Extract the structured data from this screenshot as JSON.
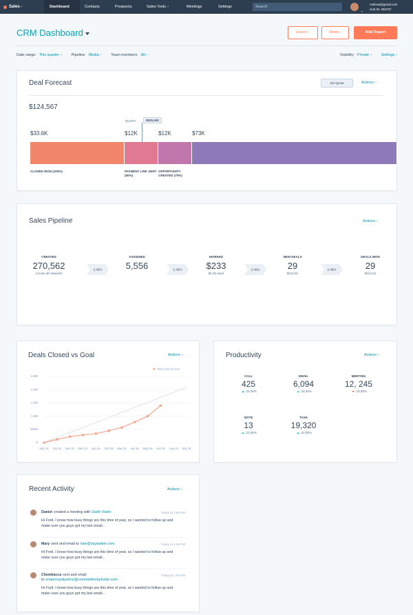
{
  "nav": {
    "brand": "Sales",
    "items": [
      "Dashboard",
      "Contacts",
      "Prospects",
      "Sales Tools",
      "Meetings",
      "Settings"
    ],
    "search": "Search",
    "email": "melissa@gmail.com",
    "hub_id": "Hub ID: 292707"
  },
  "header": {
    "title": "CRM Dashboard",
    "buttons": [
      "Export",
      "Share",
      "Add Report"
    ]
  },
  "filters": {
    "left": [
      {
        "label": "Date range:",
        "value": "This quarter"
      },
      {
        "label": "Pipeline:",
        "value": "Media"
      },
      {
        "label": "Team members:",
        "value": "All"
      }
    ],
    "visibility": {
      "label": "Visibility:",
      "value": "Private"
    },
    "settings": "Settings"
  },
  "deal_forecast": {
    "title": "Deal Forecast",
    "set_quota": "Set Quota",
    "actions": "Actions",
    "total": "$124,567",
    "quota_label": "QUOTA",
    "quota_value": "$200,343",
    "segments": [
      {
        "value": 33600,
        "label": "$33.6K",
        "caption": "CLOSED WON (100%)",
        "color": "#f2866b"
      },
      {
        "value": 12000,
        "label": "$12K",
        "caption": "PAYMENT LINK SENT (60%)",
        "color": "#e07a93"
      },
      {
        "value": 12000,
        "label": "$12K",
        "caption": "OPPORTUNITY CREATED (70%)",
        "color": "#c177ab"
      },
      {
        "value": 73000,
        "label": "$73K",
        "color": "#8e79b9"
      }
    ]
  },
  "sales_pipeline": {
    "title": "Sales Pipeline",
    "actions": "Actions",
    "stages": [
      {
        "label": "CREATED",
        "value": "270,562",
        "sub": "Across all networks"
      },
      {
        "label": "ASSIGNED",
        "value": "5,556"
      },
      {
        "label": "WORKED",
        "value": "$233",
        "sub": "$1.60 each"
      },
      {
        "label": "NEW DEALS",
        "value": "29",
        "sub": "$414.62"
      },
      {
        "label": "DEALS WON",
        "value": "29",
        "sub": "$414.62"
      }
    ],
    "conversions": [
      "2.45%",
      "2.45%",
      "2.45%",
      "2.45%"
    ]
  },
  "deals_closed": {
    "actions": "Actions"
  },
  "chart_data": {
    "type": "line",
    "title": "Deals Closed vs Goal",
    "categories": [
      "Sep 14",
      "Oct 14",
      "Nov 14",
      "Dec 14",
      "Jan 15",
      "Feb 15",
      "Mar 15",
      "Apr 15",
      "May 15",
      "Jun 15",
      "Aug 15",
      "Sep 15"
    ],
    "series": [
      {
        "name": "Total close amount",
        "color": "#f5a58c",
        "values": [
          0,
          120000,
          230000,
          290000,
          340000,
          450000,
          570000,
          780000,
          1000000,
          1400000,
          null,
          null
        ]
      },
      {
        "color": "#a9b4c2",
        "dashed": true,
        "values": [
          0,
          190000,
          380000,
          570000,
          760000,
          950000,
          1140000,
          1330000,
          1520000,
          1710000,
          1900000,
          2090000
        ]
      }
    ],
    "ylim": [
      0,
      2500000
    ],
    "yticks": [
      0,
      {
        "value": 500000,
        "label": "500K"
      },
      {
        "value": 1000000,
        "label": "1.0M"
      },
      {
        "value": 1500000,
        "label": "1.5M"
      },
      {
        "value": 2000000,
        "label": "2.0M"
      },
      {
        "value": 2500000,
        "label": "2.5M"
      }
    ],
    "grid": true
  },
  "productivity": {
    "title": "Productivity",
    "actions": "Actions",
    "metrics": [
      {
        "label": "CALL",
        "value": "425",
        "change": "23.35%",
        "trend": "up"
      },
      {
        "label": "EMAIL",
        "value": "6,094",
        "change": "23.35%",
        "trend": "up"
      },
      {
        "label": "MEETING",
        "value": "12, 245",
        "change": "23.35%",
        "trend": "down"
      },
      {
        "label": "NOTE",
        "value": "13",
        "change": "23.35%",
        "trend": "up"
      },
      {
        "label": "TASK",
        "value": "19,320",
        "change": "23.35%",
        "trend": "up"
      }
    ]
  },
  "recent_activity": {
    "title": "Recent Activity",
    "actions": "Actions",
    "items": [
      {
        "name": "Daniel",
        "action": "created a meeting with",
        "target": "Darth Vader",
        "time": "Today at 1:55 PM",
        "body": "Hi Ford. I know how busy things are this time of year, so I wanted to follow up and make sure you guys got my last email..."
      },
      {
        "name": "Mary",
        "action": "sent and email to",
        "target": "luke@skywalker.com",
        "time": "Today at 1:55 PM",
        "body": "Hi Ford. I know how busy things are this time of year, so I wanted to follow up and make sure you guys got my last email..."
      },
      {
        "name": "Chewbacca",
        "action": "sent and email to",
        "target": "emperorpalpatine@comettothedarkside.com",
        "time": "Today at 1:55 PM",
        "body": "Hi Ford. I know how busy things are this time of year, so I wanted to follow up and make sure you guys got my last email..."
      }
    ]
  }
}
